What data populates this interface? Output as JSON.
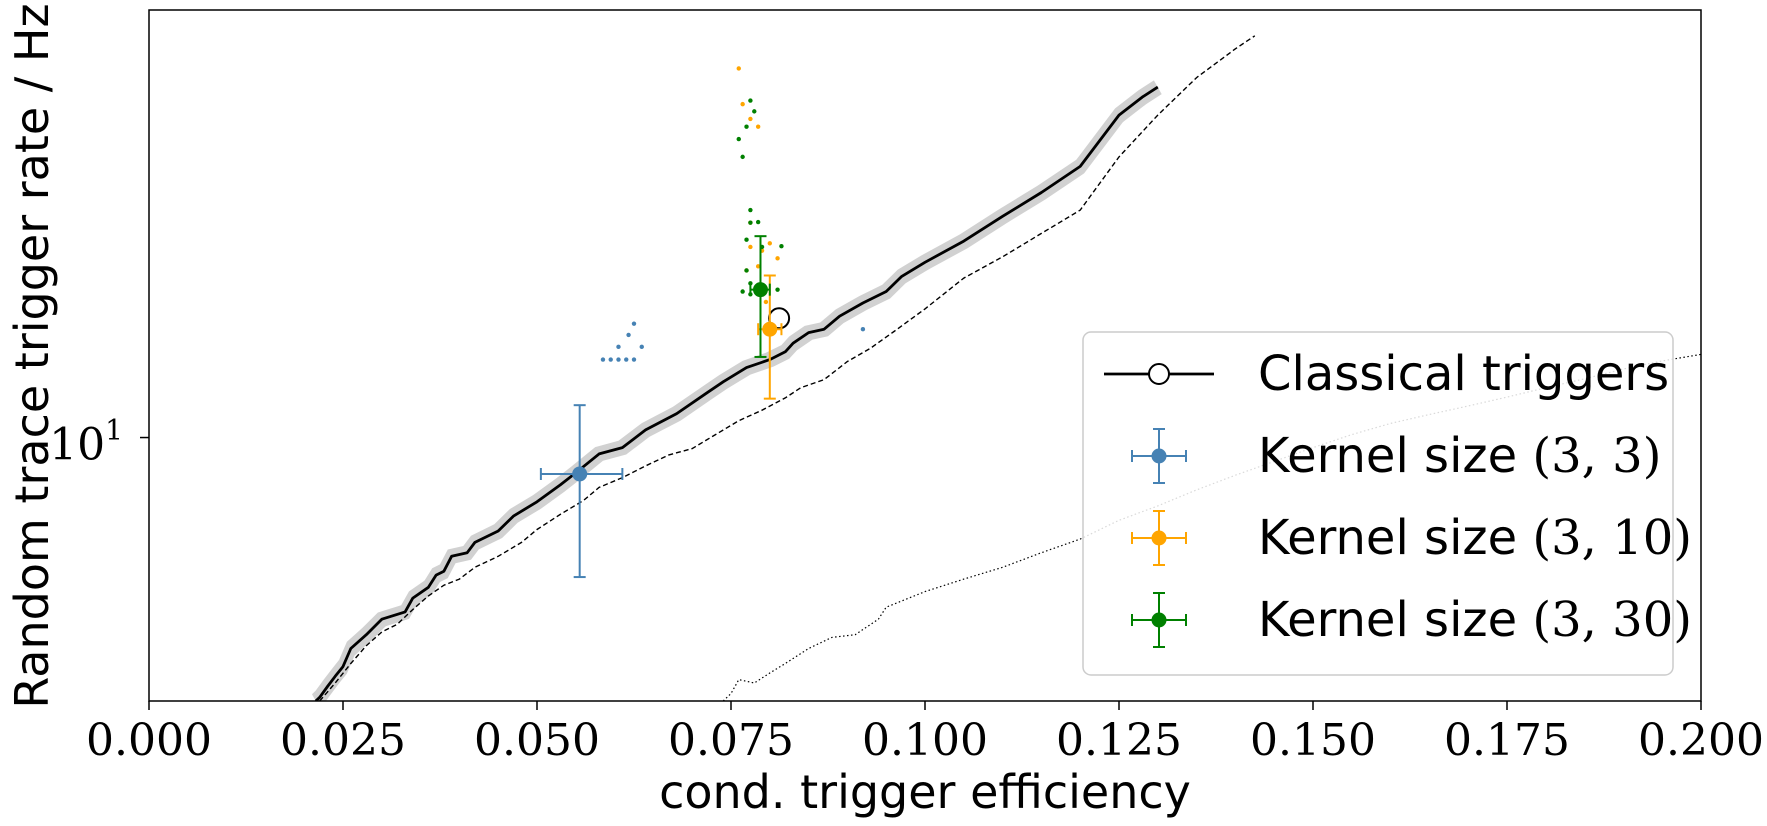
{
  "chart_data": {
    "type": "scatter",
    "xlabel": "cond. trigger efficiency",
    "ylabel": "Random trace trigger rate / Hz",
    "xlim": [
      0.0,
      0.2
    ],
    "ylim": [
      2.6,
      89
    ],
    "yscale": "log",
    "x_ticks": [
      "0.000",
      "0.025",
      "0.050",
      "0.075",
      "0.100",
      "0.125",
      "0.150",
      "0.175",
      "0.200"
    ],
    "y_tick": {
      "value": 10,
      "base": "10",
      "exponent": "1"
    },
    "grid": false,
    "legend_position": "lower right",
    "colors": {
      "classical": "#000000",
      "k33": "#4682b4",
      "k310": "#ffa500",
      "k330": "#008000"
    },
    "curves": [
      {
        "role": "classical-triggers-curve",
        "points": [
          [
            0.0215,
            2.6
          ],
          [
            0.022,
            2.65
          ],
          [
            0.023,
            2.8
          ],
          [
            0.024,
            2.95
          ],
          [
            0.025,
            3.1
          ],
          [
            0.026,
            3.4
          ],
          [
            0.028,
            3.65
          ],
          [
            0.03,
            3.95
          ],
          [
            0.033,
            4.1
          ],
          [
            0.034,
            4.4
          ],
          [
            0.036,
            4.65
          ],
          [
            0.037,
            4.95
          ],
          [
            0.038,
            5.05
          ],
          [
            0.039,
            5.45
          ],
          [
            0.041,
            5.55
          ],
          [
            0.042,
            5.85
          ],
          [
            0.045,
            6.2
          ],
          [
            0.047,
            6.7
          ],
          [
            0.05,
            7.2
          ],
          [
            0.053,
            7.85
          ],
          [
            0.055,
            8.35
          ],
          [
            0.058,
            9.2
          ],
          [
            0.061,
            9.5
          ],
          [
            0.064,
            10.4
          ],
          [
            0.068,
            11.3
          ],
          [
            0.072,
            12.6
          ],
          [
            0.074,
            13.3
          ],
          [
            0.077,
            14.3
          ],
          [
            0.08,
            14.9
          ],
          [
            0.082,
            15.5
          ],
          [
            0.083,
            16.2
          ],
          [
            0.085,
            17.1
          ],
          [
            0.087,
            17.4
          ],
          [
            0.089,
            18.6
          ],
          [
            0.092,
            19.9
          ],
          [
            0.095,
            21.1
          ],
          [
            0.097,
            22.8
          ],
          [
            0.1,
            24.5
          ],
          [
            0.105,
            27.3
          ],
          [
            0.11,
            31.0
          ],
          [
            0.115,
            35.0
          ],
          [
            0.12,
            40.0
          ],
          [
            0.125,
            52.0
          ],
          [
            0.128,
            57.0
          ],
          [
            0.13,
            60.0
          ]
        ]
      },
      {
        "role": "dashed-curve",
        "points": [
          [
            0.022,
            2.6
          ],
          [
            0.024,
            2.85
          ],
          [
            0.026,
            3.15
          ],
          [
            0.028,
            3.45
          ],
          [
            0.03,
            3.7
          ],
          [
            0.032,
            3.85
          ],
          [
            0.034,
            4.15
          ],
          [
            0.036,
            4.45
          ],
          [
            0.038,
            4.7
          ],
          [
            0.04,
            4.85
          ],
          [
            0.042,
            5.15
          ],
          [
            0.045,
            5.45
          ],
          [
            0.048,
            5.85
          ],
          [
            0.05,
            6.25
          ],
          [
            0.053,
            6.75
          ],
          [
            0.056,
            7.25
          ],
          [
            0.058,
            7.75
          ],
          [
            0.061,
            8.15
          ],
          [
            0.064,
            8.65
          ],
          [
            0.067,
            9.15
          ],
          [
            0.07,
            9.45
          ],
          [
            0.073,
            10.15
          ],
          [
            0.076,
            10.9
          ],
          [
            0.079,
            11.5
          ],
          [
            0.082,
            12.25
          ],
          [
            0.084,
            12.9
          ],
          [
            0.087,
            13.45
          ],
          [
            0.09,
            14.75
          ],
          [
            0.093,
            15.8
          ],
          [
            0.096,
            17.2
          ],
          [
            0.1,
            19.3
          ],
          [
            0.105,
            22.6
          ],
          [
            0.11,
            25.2
          ],
          [
            0.115,
            28.4
          ],
          [
            0.12,
            32.0
          ],
          [
            0.125,
            42.0
          ],
          [
            0.13,
            52.0
          ],
          [
            0.135,
            63.0
          ],
          [
            0.14,
            73.0
          ],
          [
            0.1425,
            78.0
          ]
        ]
      },
      {
        "role": "dotted-curve",
        "points": [
          [
            0.074,
            2.6
          ],
          [
            0.075,
            2.7
          ],
          [
            0.076,
            2.9
          ],
          [
            0.078,
            2.85
          ],
          [
            0.08,
            3.0
          ],
          [
            0.082,
            3.15
          ],
          [
            0.085,
            3.4
          ],
          [
            0.088,
            3.6
          ],
          [
            0.091,
            3.65
          ],
          [
            0.094,
            3.95
          ],
          [
            0.095,
            4.2
          ],
          [
            0.1,
            4.55
          ],
          [
            0.105,
            4.85
          ],
          [
            0.11,
            5.15
          ],
          [
            0.115,
            5.55
          ],
          [
            0.12,
            5.95
          ],
          [
            0.125,
            6.55
          ],
          [
            0.13,
            7.05
          ],
          [
            0.135,
            7.65
          ],
          [
            0.14,
            8.25
          ],
          [
            0.145,
            8.85
          ],
          [
            0.15,
            9.5
          ],
          [
            0.155,
            10.15
          ],
          [
            0.16,
            10.75
          ],
          [
            0.165,
            11.25
          ],
          [
            0.17,
            11.75
          ],
          [
            0.175,
            12.3
          ],
          [
            0.18,
            12.9
          ],
          [
            0.185,
            13.5
          ],
          [
            0.19,
            14.2
          ],
          [
            0.195,
            14.8
          ],
          [
            0.2,
            15.3
          ]
        ]
      }
    ],
    "series": [
      {
        "name": "Classical triggers",
        "marker": "open-circle",
        "x": 0.0812,
        "y": 18.4
      },
      {
        "name": "Kernel size (3,3)",
        "label_text": "Kernel size ",
        "label_math": "(3, 3)",
        "x": 0.0555,
        "y": 8.3,
        "xerr": [
          0.0505,
          0.061
        ],
        "yerr": [
          4.9,
          11.8
        ],
        "samples": [
          [
            0.0585,
            14.9
          ],
          [
            0.0595,
            14.9
          ],
          [
            0.0605,
            14.9
          ],
          [
            0.0615,
            14.9
          ],
          [
            0.0625,
            14.9
          ],
          [
            0.0605,
            15.9
          ],
          [
            0.0635,
            15.9
          ],
          [
            0.0618,
            16.9
          ],
          [
            0.0625,
            17.9
          ],
          [
            0.092,
            17.4
          ]
        ]
      },
      {
        "name": "Kernel size (3,10)",
        "label_text": "Kernel size ",
        "label_math": "(3, 10)",
        "x": 0.08,
        "y": 17.4,
        "xerr": [
          0.0785,
          0.0815
        ],
        "yerr": [
          12.2,
          22.9
        ],
        "samples": [
          [
            0.076,
            66.0
          ],
          [
            0.0765,
            55.0
          ],
          [
            0.0775,
            51.0
          ],
          [
            0.0785,
            49.0
          ],
          [
            0.0775,
            30.0
          ],
          [
            0.079,
            26.0
          ],
          [
            0.0775,
            26.5
          ],
          [
            0.08,
            27.0
          ],
          [
            0.081,
            25.0
          ],
          [
            0.0785,
            24.0
          ],
          [
            0.077,
            23.5
          ],
          [
            0.0795,
            20.0
          ],
          [
            0.079,
            21.0
          ]
        ]
      },
      {
        "name": "Kernel size (3,30)",
        "label_text": "Kernel size ",
        "label_math": "(3, 30)",
        "x": 0.0788,
        "y": 21.3,
        "xerr": [
          0.0775,
          0.08
        ],
        "yerr": [
          15.1,
          28.0
        ],
        "samples": [
          [
            0.0775,
            56.0
          ],
          [
            0.078,
            53.0
          ],
          [
            0.077,
            49.0
          ],
          [
            0.076,
            46.0
          ],
          [
            0.0765,
            42.0
          ],
          [
            0.0775,
            30.0
          ],
          [
            0.077,
            27.5
          ],
          [
            0.0815,
            26.6
          ],
          [
            0.0785,
            30.1
          ],
          [
            0.0775,
            32.0
          ],
          [
            0.079,
            26.5
          ],
          [
            0.0775,
            22.0
          ],
          [
            0.077,
            23.5
          ],
          [
            0.0765,
            21.1
          ],
          [
            0.081,
            21.3
          ],
          [
            0.0775,
            20.8
          ]
        ]
      }
    ]
  }
}
